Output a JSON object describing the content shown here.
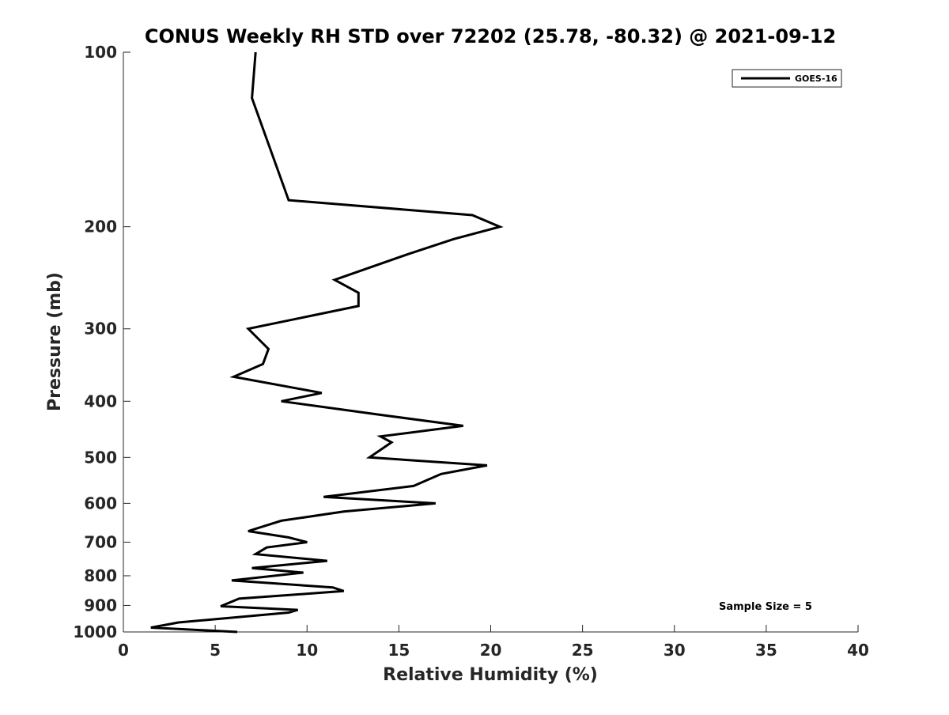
{
  "chart_data": {
    "type": "line",
    "title": "CONUS Weekly RH STD over 72202 (25.78, -80.32) @ 2021-09-12",
    "xlabel": "Relative Humidity (%)",
    "ylabel": "Pressure (mb)",
    "xlim": [
      0,
      40
    ],
    "ylim": [
      100,
      1000
    ],
    "y_scale": "log",
    "y_direction": "reversed",
    "x_ticks": [
      0,
      5,
      10,
      15,
      20,
      25,
      30,
      35,
      40
    ],
    "x_tick_labels": [
      "0",
      "5",
      "10",
      "15",
      "20",
      "25",
      "30",
      "35",
      "40"
    ],
    "y_ticks": [
      100,
      200,
      300,
      400,
      500,
      600,
      700,
      800,
      900,
      1000
    ],
    "y_tick_labels": [
      "100",
      "200",
      "300",
      "400",
      "500",
      "600",
      "700",
      "800",
      "900",
      "1000"
    ],
    "grid": false,
    "legend": {
      "position": "top-right",
      "entries": [
        "GOES-16"
      ]
    },
    "annotation": "Sample Size = 5",
    "series": [
      {
        "name": "GOES-16",
        "color": "#000000",
        "points": [
          [
            7.2,
            100
          ],
          [
            7.0,
            120
          ],
          [
            9.0,
            180
          ],
          [
            19.0,
            191
          ],
          [
            20.5,
            200
          ],
          [
            18.0,
            210
          ],
          [
            15.5,
            223
          ],
          [
            11.5,
            247
          ],
          [
            12.8,
            260
          ],
          [
            12.8,
            274
          ],
          [
            6.8,
            300
          ],
          [
            7.9,
            325
          ],
          [
            7.6,
            345
          ],
          [
            6.0,
            363
          ],
          [
            10.8,
            387
          ],
          [
            8.6,
            400
          ],
          [
            14.2,
            423
          ],
          [
            18.5,
            441
          ],
          [
            14.0,
            460
          ],
          [
            14.6,
            471
          ],
          [
            13.4,
            500
          ],
          [
            19.8,
            516
          ],
          [
            17.3,
            534
          ],
          [
            15.8,
            560
          ],
          [
            10.9,
            585
          ],
          [
            17.0,
            600
          ],
          [
            12.0,
            620
          ],
          [
            8.6,
            643
          ],
          [
            6.8,
            670
          ],
          [
            9.0,
            687
          ],
          [
            10.0,
            700
          ],
          [
            7.8,
            715
          ],
          [
            7.2,
            734
          ],
          [
            11.1,
            754
          ],
          [
            7.0,
            776
          ],
          [
            9.8,
            790
          ],
          [
            5.9,
            815
          ],
          [
            11.4,
            838
          ],
          [
            12.0,
            850
          ],
          [
            6.3,
            876
          ],
          [
            5.3,
            903
          ],
          [
            9.5,
            916
          ],
          [
            9.0,
            926
          ],
          [
            3.0,
            963
          ],
          [
            1.5,
            983
          ],
          [
            6.2,
            1000
          ]
        ]
      }
    ]
  }
}
